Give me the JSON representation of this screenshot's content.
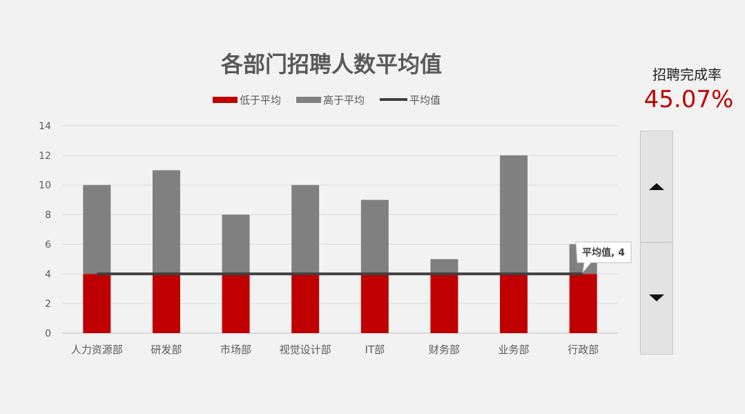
{
  "chart_data": {
    "type": "bar",
    "title": "各部门招聘人数平均值",
    "categories": [
      "人力资源部",
      "研发部",
      "市场部",
      "视觉设计部",
      "IT部",
      "财务部",
      "业务部",
      "行政部"
    ],
    "series": [
      {
        "name": "低于平均",
        "values": [
          4,
          4,
          4,
          4,
          4,
          4,
          4,
          4
        ],
        "color": "#c00000"
      },
      {
        "name": "高于平均",
        "values": [
          6,
          7,
          4,
          6,
          5,
          1,
          8,
          2
        ],
        "color": "#808080"
      },
      {
        "name": "平均值",
        "type": "line",
        "values": [
          4,
          4,
          4,
          4,
          4,
          4,
          4,
          4
        ],
        "color": "#404040"
      }
    ],
    "stacked": true,
    "ylim": [
      0,
      14
    ],
    "yticks": [
      0,
      2,
      4,
      6,
      8,
      10,
      12,
      14
    ],
    "grid": true,
    "legend_position": "top",
    "annotation": "平均值, 4"
  },
  "kpi": {
    "label": "招聘完成率",
    "value": "45.07%"
  },
  "spinner": {
    "up_icon": "triangle-up-icon",
    "down_icon": "triangle-down-icon"
  }
}
